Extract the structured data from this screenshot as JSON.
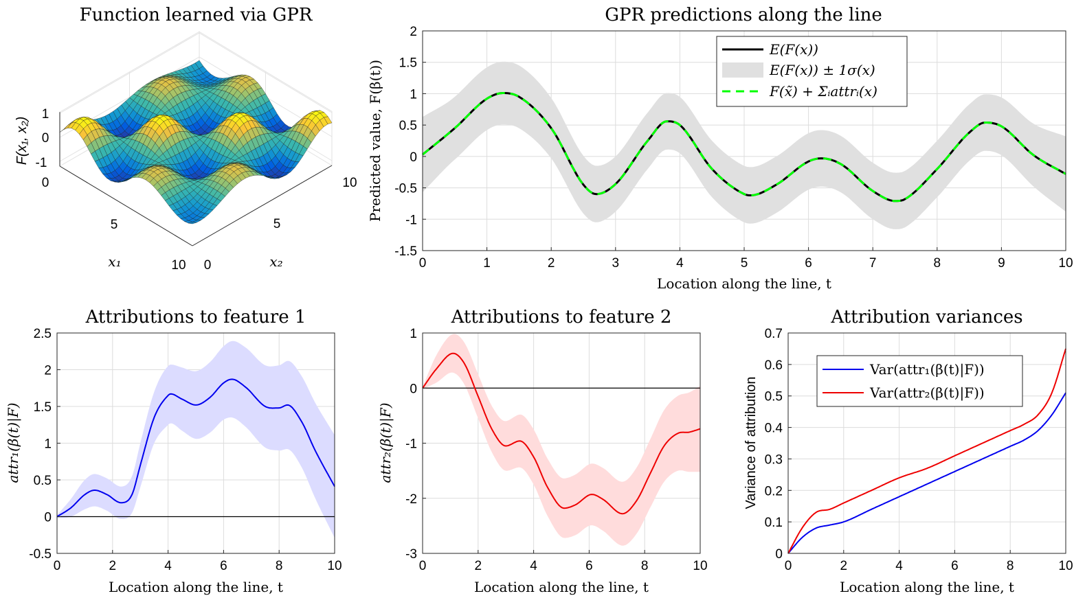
{
  "colors": {
    "mean": "#000000",
    "band": "#e0e0e0",
    "sum": "#00ff00",
    "attr1": "#0000ee",
    "attr1_band": "#dcdcff",
    "attr2": "#ee0000",
    "attr2_band": "#ffdcdc"
  },
  "chart_data": [
    {
      "type": "surface",
      "title": "Function learned via GPR",
      "zlabel": "F(x₁, x₂)",
      "xlabel": "x₁",
      "ylabel": "x₂",
      "x_ticks": [
        "0",
        "5",
        "10"
      ],
      "y_ticks": [
        "0",
        "5",
        "10"
      ],
      "z_ticks": [
        "1",
        "0",
        "-1"
      ],
      "zlim": [
        -1,
        1
      ],
      "colormap": "parula"
    },
    {
      "type": "line",
      "title": "GPR predictions along the line",
      "xlabel": "Location along the line, t",
      "ylabel": "Predicted value, F(β(t))",
      "xlim": [
        0,
        10
      ],
      "ylim": [
        -1.5,
        2
      ],
      "x_ticks": [
        "0",
        "1",
        "2",
        "3",
        "4",
        "5",
        "6",
        "7",
        "8",
        "9",
        "10"
      ],
      "y_ticks": [
        "2",
        "1.5",
        "1",
        "0.5",
        "0",
        "-0.5",
        "-1",
        "-1.5"
      ],
      "grid": true,
      "legend_position": "top-center",
      "legend": [
        "E(F(x))",
        "E(F(x)) ± 1σ(x)",
        "F(x̃) + Σᵢattrᵢ(x)"
      ],
      "x": [
        0,
        0.5,
        1,
        1.25,
        1.5,
        2,
        2.5,
        2.7,
        3,
        3.5,
        3.8,
        4,
        4.5,
        5,
        5.1,
        5.5,
        6,
        6.2,
        6.5,
        7,
        7.35,
        7.5,
        8,
        8.5,
        8.75,
        9,
        9.5,
        10
      ],
      "mean": [
        0.03,
        0.45,
        0.92,
        1.01,
        0.95,
        0.45,
        -0.45,
        -0.6,
        -0.44,
        0.25,
        0.56,
        0.5,
        -0.2,
        -0.6,
        -0.62,
        -0.45,
        -0.08,
        -0.03,
        -0.12,
        -0.55,
        -0.71,
        -0.68,
        -0.2,
        0.38,
        0.54,
        0.48,
        0.02,
        -0.28
      ],
      "sigma": [
        0.6,
        0.5,
        0.5,
        0.5,
        0.5,
        0.48,
        0.46,
        0.45,
        0.44,
        0.45,
        0.45,
        0.45,
        0.45,
        0.45,
        0.45,
        0.45,
        0.45,
        0.45,
        0.45,
        0.45,
        0.45,
        0.45,
        0.45,
        0.45,
        0.45,
        0.46,
        0.5,
        0.6
      ]
    },
    {
      "type": "line",
      "title": "Attributions to feature 1",
      "xlabel": "Location along the line, t",
      "ylabel": "attr₁(β(t)|F)",
      "xlim": [
        0,
        10
      ],
      "ylim": [
        -0.5,
        2.5
      ],
      "x_ticks": [
        "0",
        "2",
        "4",
        "6",
        "8",
        "10"
      ],
      "y_ticks": [
        "2.5",
        "2",
        "1.5",
        "1",
        "0.5",
        "0",
        "-0.5"
      ],
      "grid": true,
      "x": [
        0,
        0.5,
        1,
        1.35,
        1.8,
        2.3,
        2.7,
        3,
        3.5,
        4,
        4.1,
        4.5,
        5,
        5.5,
        6,
        6.3,
        6.8,
        7.5,
        8,
        8.3,
        8.8,
        9.3,
        10
      ],
      "values": [
        0,
        0.12,
        0.3,
        0.36,
        0.3,
        0.19,
        0.3,
        0.7,
        1.35,
        1.65,
        1.67,
        1.6,
        1.52,
        1.62,
        1.82,
        1.87,
        1.76,
        1.5,
        1.48,
        1.52,
        1.3,
        0.9,
        0.41
      ],
      "sigma": [
        0.02,
        0.12,
        0.2,
        0.22,
        0.22,
        0.22,
        0.25,
        0.3,
        0.35,
        0.4,
        0.4,
        0.43,
        0.46,
        0.48,
        0.5,
        0.52,
        0.54,
        0.56,
        0.58,
        0.6,
        0.62,
        0.65,
        0.7
      ]
    },
    {
      "type": "line",
      "title": "Attributions to feature 2",
      "xlabel": "Location along the line, t",
      "ylabel": "attr₂(β(t)|F)",
      "xlim": [
        0,
        10
      ],
      "ylim": [
        -3,
        1
      ],
      "x_ticks": [
        "0",
        "2",
        "4",
        "6",
        "8",
        "10"
      ],
      "y_ticks": [
        "1",
        "0",
        "-1",
        "-2",
        "-3"
      ],
      "grid": true,
      "x": [
        0,
        0.5,
        1.1,
        1.5,
        2,
        2.5,
        3,
        3.5,
        4,
        4.5,
        5.1,
        5.5,
        6.1,
        6.5,
        7.2,
        7.7,
        8.2,
        8.7,
        9.2,
        9.6,
        10
      ],
      "values": [
        0,
        0.35,
        0.63,
        0.45,
        -0.15,
        -0.75,
        -1.05,
        -0.96,
        -1.25,
        -1.8,
        -2.18,
        -2.12,
        -1.93,
        -2.02,
        -2.28,
        -2.05,
        -1.55,
        -1.05,
        -0.82,
        -0.8,
        -0.74
      ],
      "sigma": [
        0.02,
        0.25,
        0.35,
        0.38,
        0.4,
        0.42,
        0.45,
        0.48,
        0.5,
        0.52,
        0.54,
        0.55,
        0.56,
        0.57,
        0.58,
        0.6,
        0.62,
        0.65,
        0.68,
        0.72,
        0.78
      ]
    },
    {
      "type": "line",
      "title": "Attribution variances",
      "xlabel": "Location along the line, t",
      "ylabel": "Variance of attribution",
      "xlim": [
        0,
        10
      ],
      "ylim": [
        0,
        0.7
      ],
      "x_ticks": [
        "0",
        "2",
        "4",
        "6",
        "8",
        "10"
      ],
      "y_ticks": [
        "0.7",
        "0.6",
        "0.5",
        "0.4",
        "0.3",
        "0.2",
        "0.1",
        "0"
      ],
      "grid": true,
      "legend_position": "top-center",
      "legend": [
        "Var(attr₁(β(t)|F))",
        "Var(attr₂(β(t)|F))"
      ],
      "x": [
        0,
        0.5,
        1,
        1.5,
        2,
        3,
        4,
        5,
        6,
        7,
        8,
        8.5,
        9,
        9.5,
        10
      ],
      "series": [
        {
          "name": "Var(attr₁(β(t)|F))",
          "values": [
            0,
            0.05,
            0.08,
            0.09,
            0.1,
            0.14,
            0.18,
            0.22,
            0.26,
            0.3,
            0.34,
            0.36,
            0.39,
            0.44,
            0.51
          ]
        },
        {
          "name": "Var(attr₂(β(t)|F))",
          "values": [
            0,
            0.08,
            0.13,
            0.14,
            0.16,
            0.2,
            0.24,
            0.27,
            0.31,
            0.35,
            0.39,
            0.41,
            0.44,
            0.51,
            0.65
          ]
        }
      ]
    }
  ]
}
